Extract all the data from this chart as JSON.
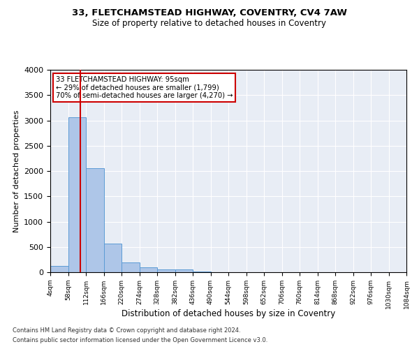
{
  "title1": "33, FLETCHAMSTEAD HIGHWAY, COVENTRY, CV4 7AW",
  "title2": "Size of property relative to detached houses in Coventry",
  "xlabel": "Distribution of detached houses by size in Coventry",
  "ylabel": "Number of detached properties",
  "footnote1": "Contains HM Land Registry data © Crown copyright and database right 2024.",
  "footnote2": "Contains public sector information licensed under the Open Government Licence v3.0.",
  "annotation_line1": "33 FLETCHAMSTEAD HIGHWAY: 95sqm",
  "annotation_line2": "← 29% of detached houses are smaller (1,799)",
  "annotation_line3": "70% of semi-detached houses are larger (4,270) →",
  "property_size": 95,
  "bin_edges": [
    4,
    58,
    112,
    166,
    220,
    274,
    328,
    382,
    436,
    490,
    544,
    598,
    652,
    706,
    760,
    814,
    868,
    922,
    976,
    1030,
    1084
  ],
  "bar_heights": [
    130,
    3060,
    2060,
    560,
    200,
    90,
    60,
    50,
    10,
    0,
    0,
    0,
    0,
    0,
    0,
    0,
    0,
    0,
    0,
    0
  ],
  "bar_color": "#aec6e8",
  "bar_edge_color": "#5b9bd5",
  "vline_color": "#cc0000",
  "annotation_box_color": "#cc0000",
  "background_color": "#e8edf5",
  "fig_background_color": "#ffffff",
  "grid_color": "#ffffff",
  "ylim": [
    0,
    4000
  ],
  "yticks": [
    0,
    500,
    1000,
    1500,
    2000,
    2500,
    3000,
    3500,
    4000
  ]
}
